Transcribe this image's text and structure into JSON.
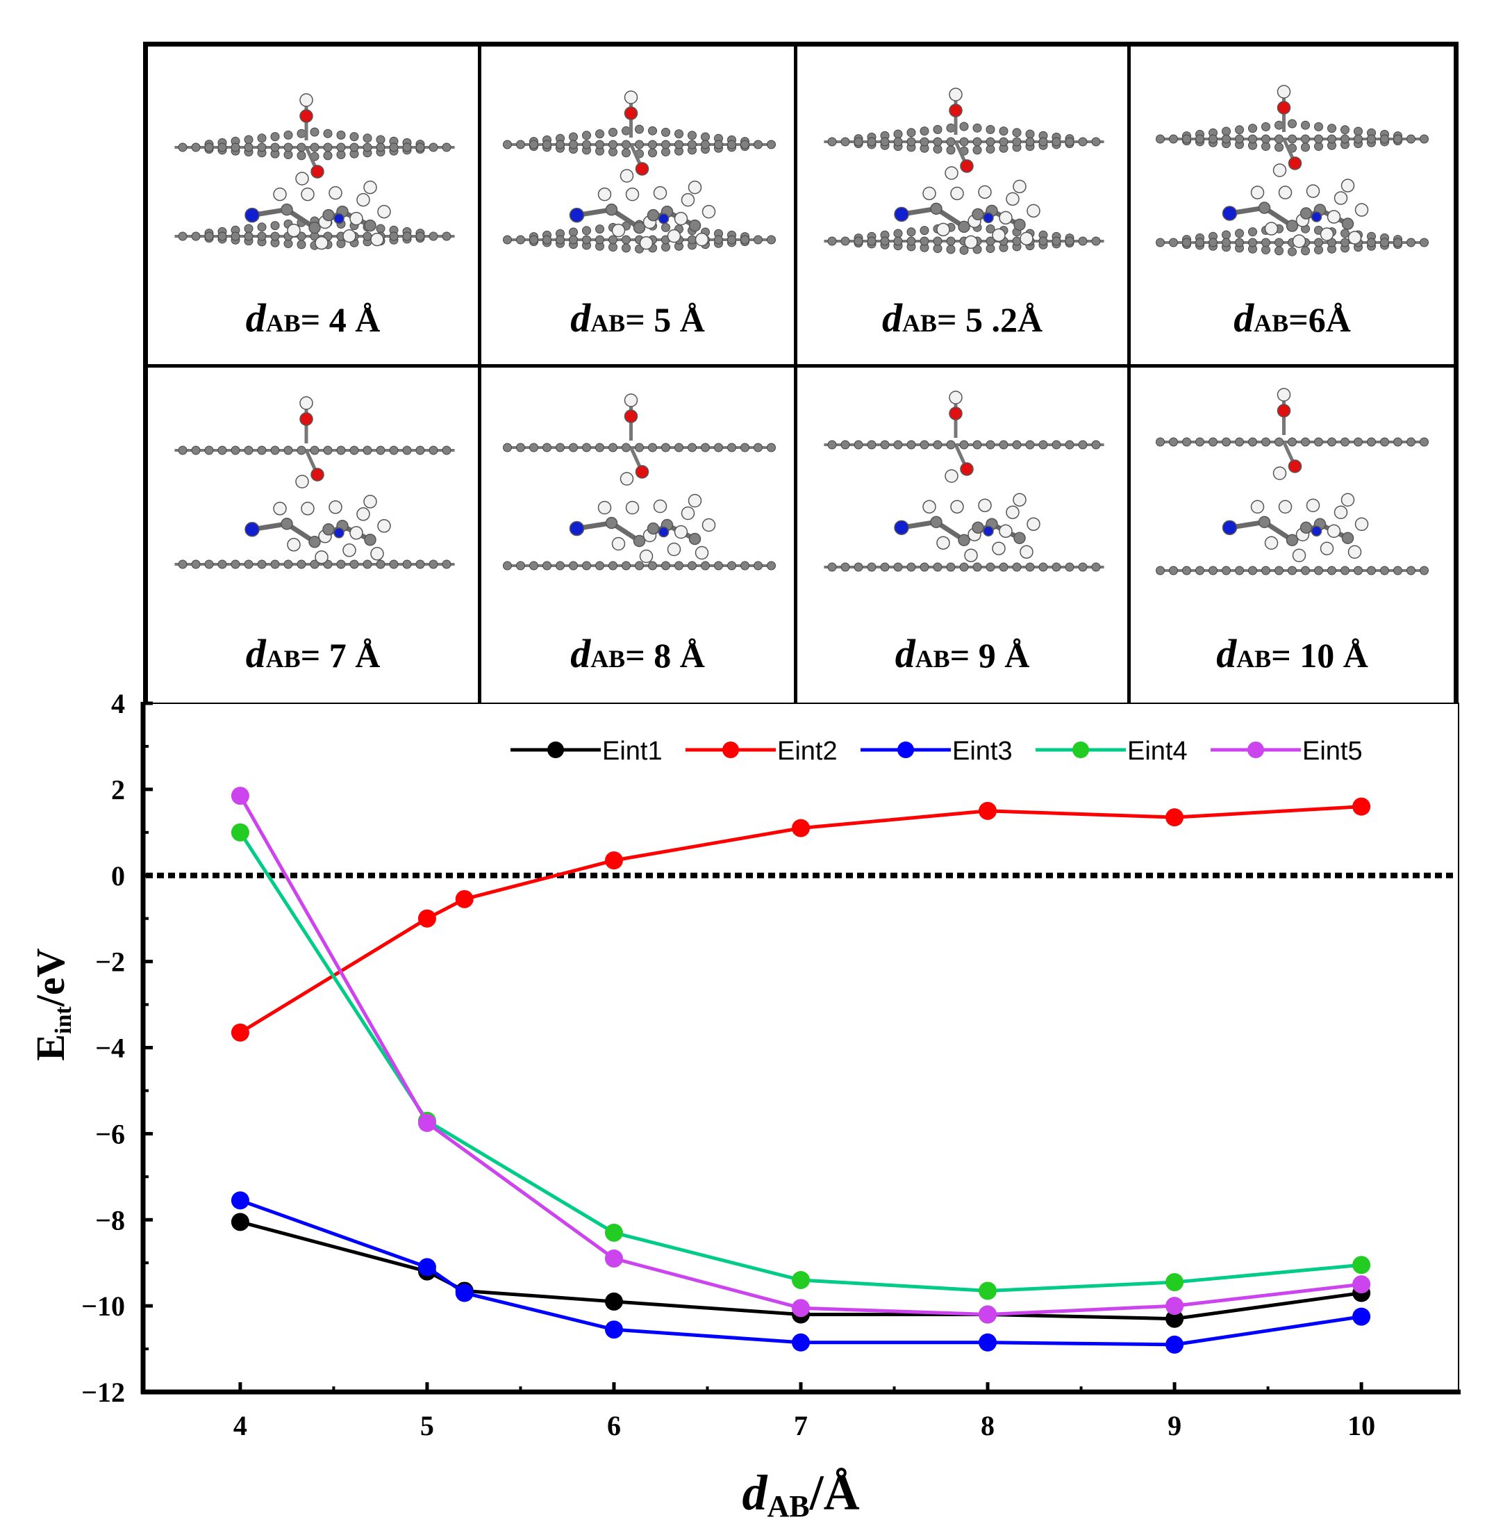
{
  "panels": [
    {
      "prefix": "d",
      "sub": "AB",
      "suffix": "= 4 Å",
      "gap": 0.32
    },
    {
      "prefix": "d",
      "sub": "AB",
      "suffix": "= 5 Å",
      "gap": 0.38
    },
    {
      "prefix": "d",
      "sub": "AB",
      "suffix": "= 5 .2Å",
      "gap": 0.42
    },
    {
      "prefix": "d",
      "sub": "AB",
      "suffix": "=6Å",
      "gap": 0.46
    },
    {
      "prefix": "d",
      "sub": "AB",
      "suffix": "= 7 Å",
      "gap": 0.56
    },
    {
      "prefix": "d",
      "sub": "AB",
      "suffix": "= 8 Å",
      "gap": 0.6
    },
    {
      "prefix": "d",
      "sub": "AB",
      "suffix": "= 9 Å",
      "gap": 0.64
    },
    {
      "prefix": "d",
      "sub": "AB",
      "suffix": "= 10 Å",
      "gap": 0.7
    }
  ],
  "atom_colors": {
    "carbon": "#808080",
    "hydrogen": "#f2f2f2",
    "oxygen": "#e01010",
    "nitrogen": "#1020d0"
  },
  "chart_data": {
    "type": "line",
    "xlabel_prefix": "d",
    "xlabel_sub": "AB",
    "xlabel_suffix": "/Å",
    "ylabel_main": "E",
    "ylabel_sub": "int",
    "ylabel_suffix": "/eV",
    "xlim": [
      3.48,
      10.52
    ],
    "ylim": [
      -12,
      4
    ],
    "xticks": [
      4,
      5,
      6,
      7,
      8,
      9,
      10
    ],
    "yticks": [
      -12,
      -10,
      -8,
      -6,
      -4,
      -2,
      0,
      2,
      4
    ],
    "ytick_labels": [
      "−12",
      "−10",
      "−8",
      "−6",
      "−4",
      "−2",
      "0",
      "2",
      "4"
    ],
    "reference_line": 0,
    "legend_position": "top-right",
    "x": [
      4,
      5,
      5.2,
      6,
      7,
      8,
      9,
      10
    ],
    "series": [
      {
        "name": "Eint1",
        "color": "#000000",
        "values": [
          -8.05,
          -9.2,
          -9.65,
          -9.9,
          -10.2,
          -10.2,
          -10.3,
          -9.7
        ]
      },
      {
        "name": "Eint2",
        "color": "#ff0000",
        "values": [
          -3.65,
          -1,
          -0.55,
          0.35,
          1.1,
          1.5,
          1.35,
          1.6
        ]
      },
      {
        "name": "Eint3",
        "color": "#0000ff",
        "values": [
          -7.55,
          -9.1,
          -9.7,
          -10.55,
          -10.85,
          -10.85,
          -10.9,
          -10.25
        ]
      },
      {
        "name": "Eint4",
        "color": "#00cc88",
        "point_color": "#22cc22",
        "values": [
          1,
          -5.7,
          null,
          -8.3,
          -9.4,
          -9.65,
          -9.45,
          -9.05
        ]
      },
      {
        "name": "Eint5",
        "color": "#cc44ee",
        "values": [
          1.85,
          -5.75,
          null,
          -8.9,
          -10.05,
          -10.2,
          -10,
          -9.5
        ]
      }
    ]
  }
}
